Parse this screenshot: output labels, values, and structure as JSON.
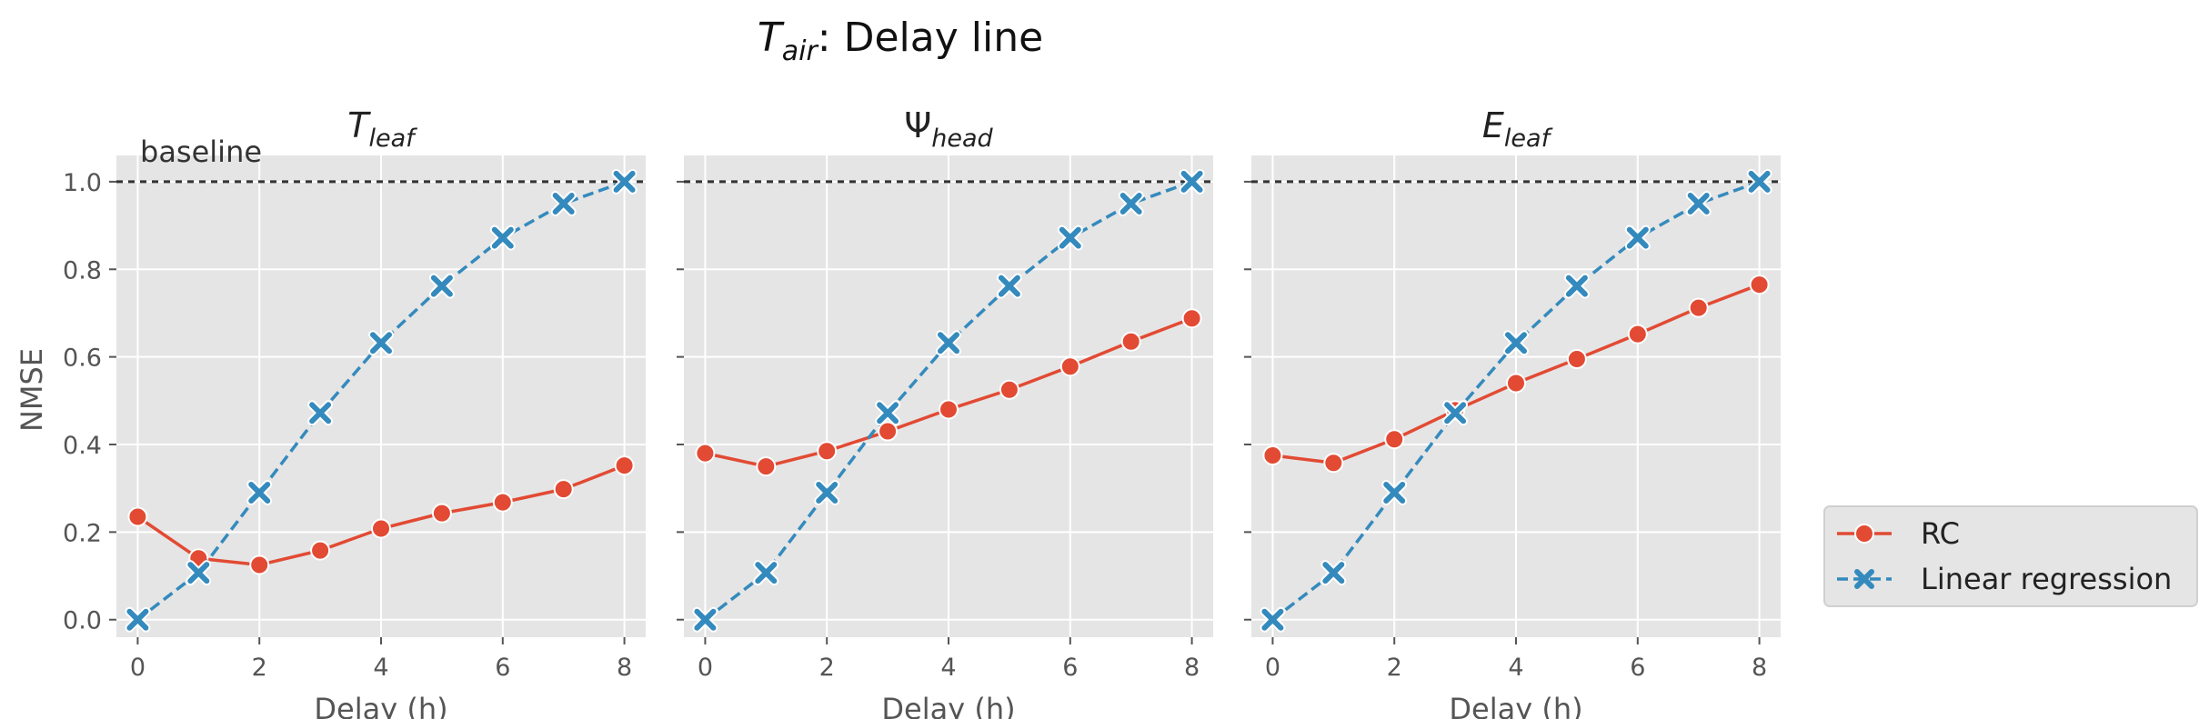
{
  "chart_data": {
    "type": "line",
    "title": "T_air: Delay line",
    "title_main": "T",
    "title_sub": "air",
    "title_rest": ": Delay line",
    "ylabel": "NMSE",
    "xlabel": "Delay (h)",
    "ylim": [
      -0.04,
      1.06
    ],
    "xlim": [
      -0.35,
      8.35
    ],
    "xticks": [
      "0",
      "2",
      "4",
      "6",
      "8"
    ],
    "yticks": [
      "0.0",
      "0.2",
      "0.4",
      "0.6",
      "0.8",
      "1.0"
    ],
    "grid": true,
    "baseline": {
      "value": 1.0,
      "label": "baseline"
    },
    "legend": {
      "placement": "lower-right-outside"
    },
    "panels": [
      {
        "title": "T_leaf",
        "title_main": "T",
        "title_sub": "leaf",
        "title_italic": true,
        "x": [
          0,
          1,
          2,
          3,
          4,
          5,
          6,
          7,
          8
        ],
        "series": [
          {
            "name": "RC",
            "values": [
              0.235,
              0.14,
              0.125,
              0.158,
              0.208,
              0.243,
              0.268,
              0.298,
              0.352
            ]
          },
          {
            "name": "Linear regression",
            "values": [
              0.0,
              0.107,
              0.29,
              0.472,
              0.632,
              0.762,
              0.872,
              0.95,
              1.0
            ]
          }
        ]
      },
      {
        "title": "Ψ_head",
        "title_main": "Ψ",
        "title_sub": "head",
        "title_italic": false,
        "x": [
          0,
          1,
          2,
          3,
          4,
          5,
          6,
          7,
          8
        ],
        "series": [
          {
            "name": "RC",
            "values": [
              0.38,
              0.35,
              0.385,
              0.43,
              0.48,
              0.525,
              0.578,
              0.635,
              0.688
            ]
          },
          {
            "name": "Linear regression",
            "values": [
              0.0,
              0.107,
              0.29,
              0.472,
              0.632,
              0.762,
              0.872,
              0.95,
              1.0
            ]
          }
        ]
      },
      {
        "title": "E_leaf",
        "title_main": "E",
        "title_sub": "leaf",
        "title_italic": true,
        "x": [
          0,
          1,
          2,
          3,
          4,
          5,
          6,
          7,
          8
        ],
        "series": [
          {
            "name": "RC",
            "values": [
              0.375,
              0.358,
              0.412,
              0.478,
              0.54,
              0.595,
              0.652,
              0.712,
              0.765
            ]
          },
          {
            "name": "Linear regression",
            "values": [
              0.0,
              0.107,
              0.29,
              0.472,
              0.632,
              0.762,
              0.872,
              0.95,
              1.0
            ]
          }
        ]
      }
    ],
    "colors": {
      "RC": "#e24a33",
      "Linear regression": "#348abd",
      "panel_bg": "#e5e5e5",
      "grid": "#ffffff",
      "baseline": "#333333"
    }
  }
}
